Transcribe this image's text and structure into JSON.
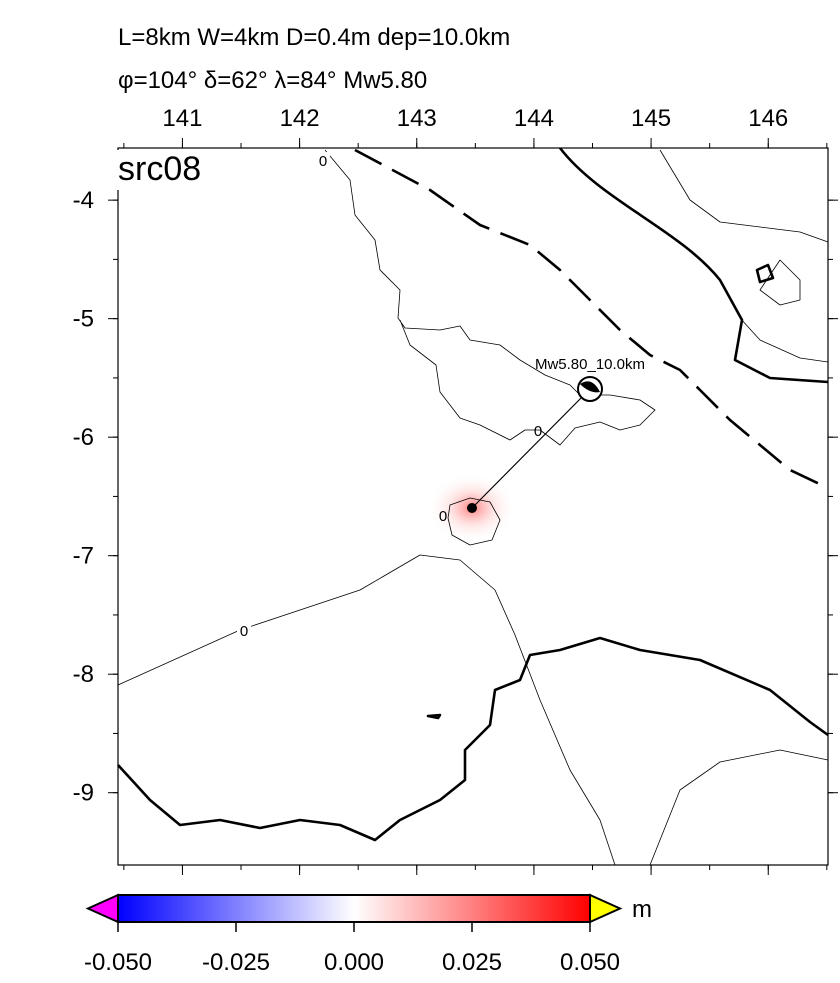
{
  "title": [
    "L=8km W=4km D=0.4m dep=10.0km",
    "φ=104° δ=62° λ=84° Mw5.80"
  ],
  "panel_label": "src08",
  "map": {
    "xlim": [
      140.45,
      146.51
    ],
    "ylim": [
      -9.61,
      -3.56
    ],
    "xticks": [
      141,
      142,
      143,
      144,
      145,
      146
    ],
    "yticks": [
      -4,
      -5,
      -6,
      -7,
      -8,
      -9
    ]
  },
  "event_label": "Mw5.80_10.0km",
  "contour_labels": [
    "0",
    "0",
    "0",
    "0"
  ],
  "colorbar": {
    "lim": [
      -0.05,
      0.05
    ],
    "ticks": [
      {
        "value": -0.05,
        "label": "-0.050"
      },
      {
        "value": -0.025,
        "label": "-0.025"
      },
      {
        "value": 0,
        "label": "0.000"
      },
      {
        "value": 0.025,
        "label": "0.025"
      },
      {
        "value": 0.05,
        "label": "0.050"
      }
    ],
    "unit": "m",
    "colors": [
      "#0000ff",
      "#ffffff",
      "#ff0000"
    ],
    "under": "#ff00ff",
    "over": "#ffff00"
  }
}
